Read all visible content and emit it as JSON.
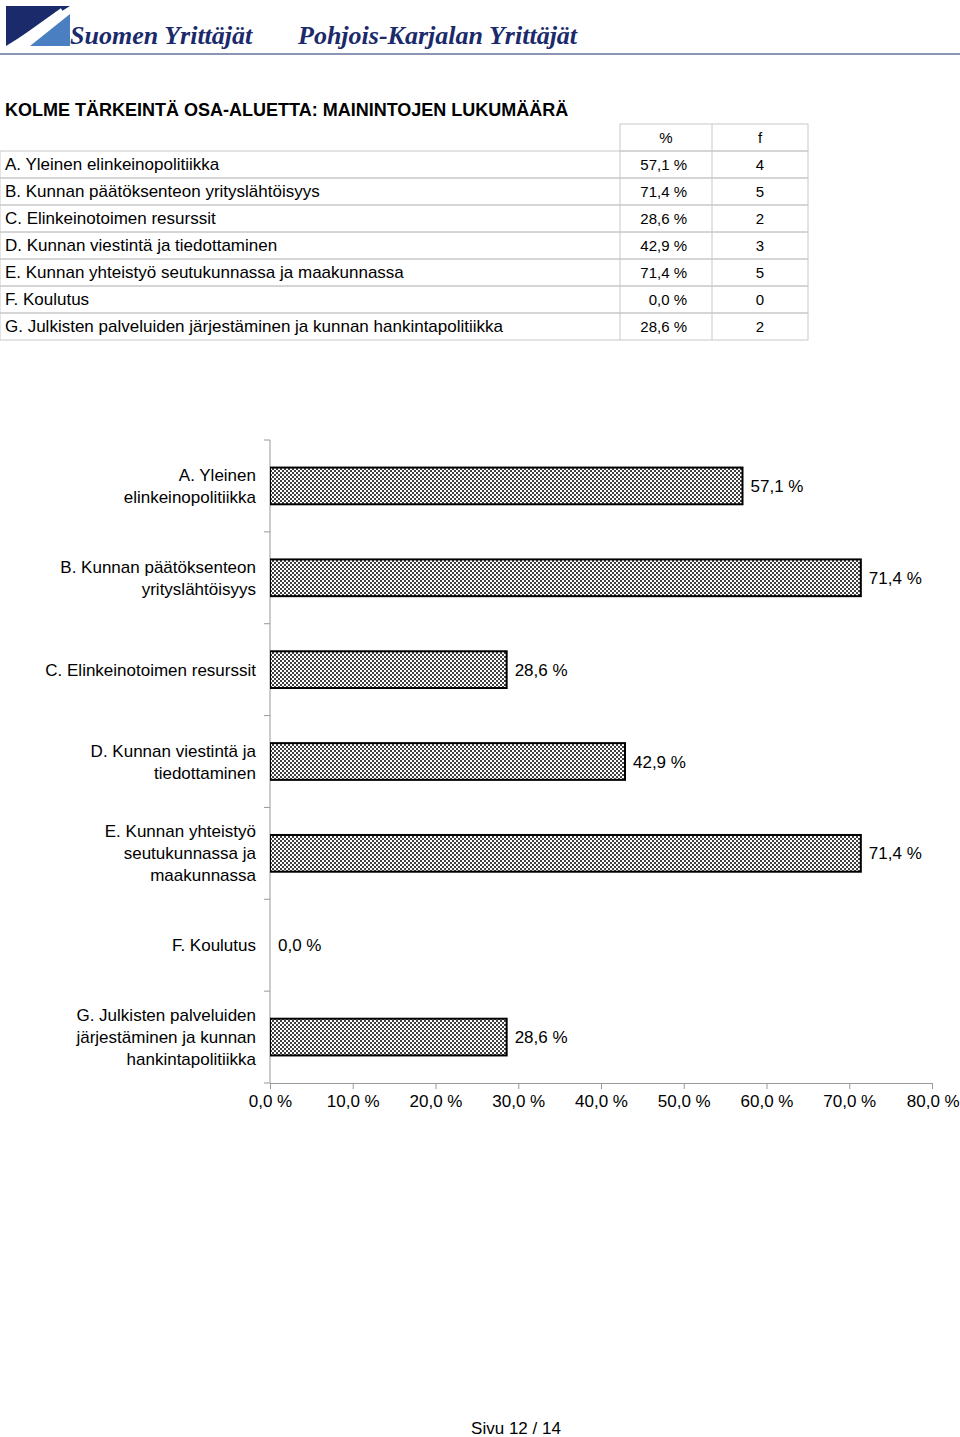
{
  "header": {
    "org": "Suomen Yrittäjät",
    "region": "Pohjois-Karjalan Yrittäjät"
  },
  "title": "KOLME TÄRKEINTÄ OSA-ALUETTA: MAININTOJEN LUKUMÄÄRÄ",
  "table": {
    "columns": [
      "%",
      "f"
    ],
    "rows": [
      [
        "A. Yleinen elinkeinopolitiikka",
        "57,1 %",
        4
      ],
      [
        "B. Kunnan päätöksenteon yrityslähtöisyys",
        "71,4 %",
        5
      ],
      [
        "C. Elinkeinotoimen resurssit",
        "28,6 %",
        2
      ],
      [
        "D. Kunnan viestintä ja tiedottaminen",
        "42,9 %",
        3
      ],
      [
        "E. Kunnan yhteistyö seutukunnassa ja maakunnassa",
        "71,4 %",
        5
      ],
      [
        "F. Koulutus",
        "0,0 %",
        0
      ],
      [
        "G. Julkisten palveluiden järjestäminen ja kunnan hankintapolitiikka",
        "28,6 %",
        2
      ]
    ]
  },
  "chart_data": {
    "type": "bar",
    "orientation": "horizontal",
    "categories": [
      "A. Yleinen\nelinkeinopolitiikka",
      "B. Kunnan päätöksenteon\nyrityslähtöisyys",
      "C. Elinkeinotoimen resurssit",
      "D. Kunnan viestintä ja\ntiedottaminen",
      "E. Kunnan yhteistyö\nseutukunnassa ja\nmaakunnassa",
      "F. Koulutus",
      "G. Julkisten palveluiden\njärjestäminen ja kunnan\nhankintapolitiikka"
    ],
    "values": [
      57.1,
      71.4,
      28.6,
      42.9,
      71.4,
      0,
      28.6
    ],
    "value_labels": [
      "57,1 %",
      "71,4 %",
      "28,6 %",
      "42,9 %",
      "71,4 %",
      "0,0 %",
      "28,6 %"
    ],
    "data_labels": true,
    "color": "#000000",
    "grid": false,
    "xlim": [
      0,
      80
    ],
    "xticks": [
      {
        "value": 0,
        "label": "0,0 %"
      },
      {
        "value": 10,
        "label": "10,0 %"
      },
      {
        "value": 20,
        "label": "20,0 %"
      },
      {
        "value": 30,
        "label": "30,0 %"
      },
      {
        "value": 40,
        "label": "40,0 %"
      },
      {
        "value": 50,
        "label": "50,0 %"
      },
      {
        "value": 60,
        "label": "60,0 %"
      },
      {
        "value": 70,
        "label": "70,0 %"
      },
      {
        "value": 80,
        "label": "80,0 %"
      }
    ]
  },
  "footer": "Sivu 12 / 14"
}
